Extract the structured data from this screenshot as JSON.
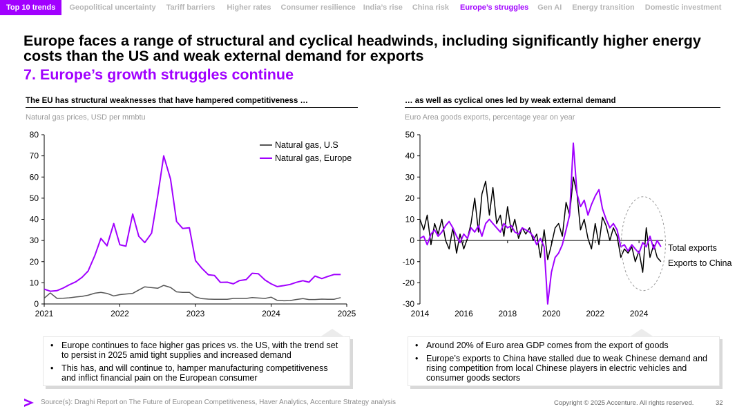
{
  "nav": {
    "tabs": [
      "Top 10 trends",
      "Geopolitical uncertainty",
      "Tariff barriers",
      "Higher rates",
      "Consumer resilience",
      "India’s rise",
      "China risk",
      "Europe’s struggles",
      "Gen AI",
      "Energy transition",
      "Domestic investment"
    ],
    "active": "Europe’s struggles"
  },
  "headline": "Europe faces a range of structural and cyclical headwinds, including significantly higher energy costs than the US and weak external demand for exports",
  "subhead": "7. Europe’s growth struggles continue",
  "left_panel": {
    "title": "The EU has structural weaknesses that have hampered competitiveness …",
    "subtitle": "Natural gas prices, USD per mmbtu",
    "bullets": [
      "Europe continues to face higher gas prices vs. the US, with the trend set to persist in 2025 amid tight supplies and increased demand",
      "This has, and will continue to, hamper manufacturing competitiveness and inflict financial pain on the European consumer"
    ]
  },
  "right_panel": {
    "title": "… as well as cyclical ones led by weak external demand",
    "subtitle": "Euro Area goods exports, percentage year on year",
    "bullets": [
      "Around 20% of Euro area GDP comes from the export of goods",
      "Europe’s exports to China have stalled due to weak Chinese demand and rising competition from local Chinese players in electric vehicles and consumer goods sectors"
    ]
  },
  "colors": {
    "accent": "#a100ff",
    "dark_line": "#555555",
    "black_line": "#000000"
  },
  "chart_data": [
    {
      "type": "line",
      "title": "Natural gas prices, USD per mmbtu",
      "xlabel": "",
      "ylabel": "",
      "xlim": [
        2021,
        2025
      ],
      "ylim": [
        0,
        80
      ],
      "x_ticks": [
        "2021",
        "2022",
        "2023",
        "2024",
        "2025"
      ],
      "y_ticks": [
        0,
        10,
        20,
        30,
        40,
        50,
        60,
        70,
        80
      ],
      "legend": "top-right",
      "series": [
        {
          "name": "Natural gas, U.S",
          "color": "#555555",
          "x": [
            2021.0,
            2021.08,
            2021.17,
            2021.25,
            2021.33,
            2021.42,
            2021.5,
            2021.58,
            2021.67,
            2021.75,
            2021.83,
            2021.92,
            2022.0,
            2022.08,
            2022.17,
            2022.25,
            2022.33,
            2022.42,
            2022.5,
            2022.58,
            2022.67,
            2022.75,
            2022.83,
            2022.92,
            2023.0,
            2023.08,
            2023.17,
            2023.25,
            2023.33,
            2023.42,
            2023.5,
            2023.58,
            2023.67,
            2023.75,
            2023.83,
            2023.92,
            2024.0,
            2024.08,
            2024.17,
            2024.25,
            2024.33,
            2024.42,
            2024.5,
            2024.58,
            2024.67,
            2024.75,
            2024.83,
            2024.92
          ],
          "values": [
            2.7,
            5.2,
            2.6,
            2.7,
            2.9,
            3.3,
            3.6,
            4.1,
            5.1,
            5.5,
            5.0,
            3.8,
            4.4,
            4.7,
            5.0,
            6.6,
            8.1,
            7.7,
            7.4,
            8.8,
            7.8,
            5.7,
            5.5,
            5.5,
            3.3,
            2.5,
            2.3,
            2.2,
            2.2,
            2.2,
            2.6,
            2.6,
            2.6,
            3.0,
            2.8,
            2.6,
            3.2,
            1.7,
            1.5,
            1.6,
            2.1,
            2.5,
            2.1,
            2.1,
            2.3,
            2.2,
            2.2,
            3.0
          ]
        },
        {
          "name": "Natural gas, Europe",
          "color": "#a100ff",
          "x": [
            2021.0,
            2021.08,
            2021.17,
            2021.25,
            2021.33,
            2021.42,
            2021.5,
            2021.58,
            2021.67,
            2021.75,
            2021.83,
            2021.92,
            2022.0,
            2022.08,
            2022.17,
            2022.25,
            2022.33,
            2022.42,
            2022.5,
            2022.58,
            2022.67,
            2022.75,
            2022.83,
            2022.92,
            2023.0,
            2023.08,
            2023.17,
            2023.25,
            2023.33,
            2023.42,
            2023.5,
            2023.58,
            2023.67,
            2023.75,
            2023.83,
            2023.92,
            2024.0,
            2024.08,
            2024.17,
            2024.25,
            2024.33,
            2024.42,
            2024.5,
            2024.58,
            2024.67,
            2024.75,
            2024.83,
            2024.92
          ],
          "values": [
            7.0,
            6.0,
            6.3,
            7.5,
            9.0,
            10.5,
            12.6,
            15.5,
            23.0,
            31.0,
            27.5,
            38.0,
            28.0,
            27.3,
            42.5,
            32.0,
            29.0,
            33.5,
            51.0,
            70.0,
            59.0,
            39.0,
            35.7,
            36.0,
            20.5,
            17.0,
            13.8,
            13.5,
            10.2,
            10.3,
            9.5,
            11.0,
            11.5,
            14.5,
            14.3,
            11.3,
            9.5,
            8.2,
            8.7,
            9.2,
            10.2,
            11.0,
            10.3,
            13.2,
            12.0,
            13.0,
            13.9,
            13.9
          ]
        }
      ]
    },
    {
      "type": "line",
      "title": "Euro Area goods exports, percentage year on year",
      "xlabel": "",
      "ylabel": "",
      "xlim": [
        2014,
        2025.1
      ],
      "ylim": [
        -30,
        50
      ],
      "x_ticks": [
        "2014",
        "2016",
        "2018",
        "2020",
        "2022",
        "2024"
      ],
      "y_ticks": [
        -30,
        -20,
        -10,
        0,
        10,
        20,
        30,
        40,
        50
      ],
      "series": [
        {
          "name": "Total exports",
          "color": "#000000",
          "x": [
            2014.0,
            2014.17,
            2014.33,
            2014.5,
            2014.67,
            2014.83,
            2015.0,
            2015.17,
            2015.33,
            2015.5,
            2015.67,
            2015.83,
            2016.0,
            2016.17,
            2016.33,
            2016.5,
            2016.67,
            2016.83,
            2017.0,
            2017.17,
            2017.33,
            2017.5,
            2017.67,
            2017.83,
            2018.0,
            2018.17,
            2018.33,
            2018.5,
            2018.67,
            2018.83,
            2019.0,
            2019.17,
            2019.33,
            2019.5,
            2019.67,
            2019.83,
            2020.0,
            2020.17,
            2020.33,
            2020.5,
            2020.67,
            2020.83,
            2021.0,
            2021.17,
            2021.33,
            2021.5,
            2021.67,
            2021.83,
            2022.0,
            2022.17,
            2022.33,
            2022.5,
            2022.67,
            2022.83,
            2023.0,
            2023.17,
            2023.33,
            2023.5,
            2023.67,
            2023.83,
            2024.0,
            2024.17,
            2024.33,
            2024.5,
            2024.67,
            2024.83,
            2025.0
          ],
          "values": [
            10,
            5,
            12,
            -2,
            8,
            3,
            10,
            0,
            -4,
            6,
            -6,
            3,
            -4,
            1,
            8,
            20,
            4,
            22,
            28,
            12,
            25,
            8,
            12,
            2,
            16,
            4,
            10,
            1,
            6,
            3,
            6,
            0,
            3,
            -8,
            5,
            -9,
            -2,
            6,
            8,
            2,
            18,
            12,
            30,
            22,
            5,
            10,
            1,
            -4,
            8,
            -2,
            11,
            7,
            0,
            6,
            2,
            -8,
            -4,
            -6,
            -3,
            -10,
            -5,
            -15,
            6,
            -8,
            -2,
            -8,
            -10
          ]
        },
        {
          "name": "Exports to China",
          "color": "#a100ff",
          "x": [
            2014.0,
            2014.17,
            2014.33,
            2014.5,
            2014.67,
            2014.83,
            2015.0,
            2015.17,
            2015.33,
            2015.5,
            2015.67,
            2015.83,
            2016.0,
            2016.17,
            2016.33,
            2016.5,
            2016.67,
            2016.83,
            2017.0,
            2017.17,
            2017.33,
            2017.5,
            2017.67,
            2017.83,
            2018.0,
            2018.17,
            2018.33,
            2018.5,
            2018.67,
            2018.83,
            2019.0,
            2019.17,
            2019.33,
            2019.5,
            2019.67,
            2019.83,
            2020.0,
            2020.17,
            2020.33,
            2020.5,
            2020.67,
            2020.83,
            2021.0,
            2021.17,
            2021.33,
            2021.5,
            2021.67,
            2021.83,
            2022.0,
            2022.17,
            2022.33,
            2022.5,
            2022.67,
            2022.83,
            2023.0,
            2023.17,
            2023.33,
            2023.5,
            2023.67,
            2023.83,
            2024.0,
            2024.17,
            2024.33,
            2024.5,
            2024.67,
            2024.83,
            2025.0
          ],
          "values": [
            1,
            2,
            -2,
            3,
            5,
            2,
            4,
            7,
            9,
            6,
            2,
            -1,
            3,
            1,
            6,
            4,
            7,
            2,
            8,
            10,
            8,
            6,
            4,
            8,
            6,
            7,
            4,
            3,
            6,
            5,
            4,
            2,
            -2,
            1,
            -3,
            -30,
            -15,
            -8,
            -6,
            -2,
            5,
            12,
            46,
            22,
            16,
            19,
            12,
            17,
            21,
            24,
            15,
            10,
            6,
            8,
            5,
            -3,
            -2,
            -5,
            -2,
            -4,
            -6,
            -1,
            -3,
            2,
            -4,
            0,
            -3
          ]
        }
      ]
    }
  ],
  "footer": {
    "source": "Source(s): Draghi Report on The Future of European Competitiveness, Haver Analytics, Accenture Strategy analysis",
    "copyright": "Copyright © 2025 Accenture. All rights reserved.",
    "page": "32"
  }
}
